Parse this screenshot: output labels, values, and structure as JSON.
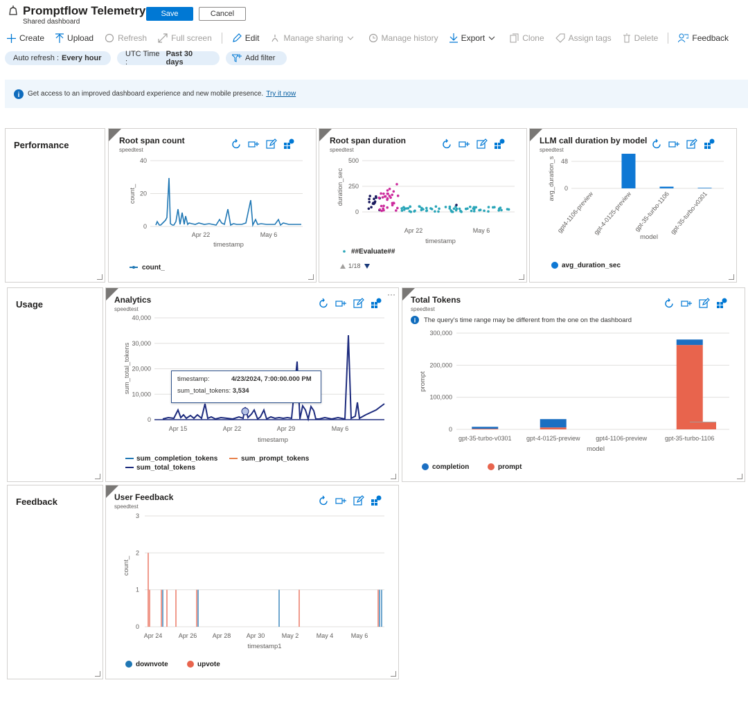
{
  "header": {
    "title": "Promptflow Telemetry",
    "subtitle": "Shared dashboard",
    "save_label": "Save",
    "cancel_label": "Cancel"
  },
  "toolbar": [
    {
      "label": "Create",
      "icon": "plus-icon",
      "enabled": true
    },
    {
      "label": "Upload",
      "icon": "upload-icon",
      "enabled": true
    },
    {
      "label": "Refresh",
      "icon": "refresh-icon",
      "enabled": false
    },
    {
      "label": "Full screen",
      "icon": "fullscreen-icon",
      "enabled": false
    },
    {
      "label": "Edit",
      "icon": "pencil-icon",
      "enabled": true
    },
    {
      "label": "Manage sharing",
      "icon": "share-icon",
      "enabled": false
    },
    {
      "label": "Manage history",
      "icon": "history-icon",
      "enabled": false
    },
    {
      "label": "Export",
      "icon": "download-icon",
      "enabled": true
    },
    {
      "label": "Clone",
      "icon": "copy-icon",
      "enabled": false
    },
    {
      "label": "Assign tags",
      "icon": "tag-icon",
      "enabled": false
    },
    {
      "label": "Delete",
      "icon": "trash-icon",
      "enabled": false
    },
    {
      "label": "Feedback",
      "icon": "feedback-icon",
      "enabled": true
    }
  ],
  "filters": {
    "auto_refresh_key": "Auto refresh :",
    "auto_refresh_val": "Every hour",
    "time_key": "UTC Time :",
    "time_val": "Past 30 days",
    "add_filter": "Add filter"
  },
  "banner": {
    "text": "Get access to an improved dashboard experience and new mobile presence.",
    "link": "Try it now"
  },
  "sections": {
    "performance": "Performance",
    "usage": "Usage",
    "feedback": "Feedback"
  },
  "tiles": {
    "root_span_count": {
      "title": "Root span count",
      "subtitle": "speedtest"
    },
    "root_span_duration": {
      "title": "Root span duration",
      "subtitle": "speedtest"
    },
    "llm_duration": {
      "title": "LLM call duration by model",
      "subtitle": "speedtest"
    },
    "analytics": {
      "title": "Analytics",
      "subtitle": "speedtest"
    },
    "total_tokens": {
      "title": "Total Tokens",
      "subtitle": "speedtest",
      "notice": "The query's time range may be different from the one on the dashboard"
    },
    "user_feedback": {
      "title": "User Feedback",
      "subtitle": "speedtest"
    }
  },
  "tooltip": {
    "timestamp_key": "timestamp:",
    "timestamp_val": "4/23/2024, 7:00:00.000 PM",
    "tokens_key": "sum_total_tokens:",
    "tokens_val": "3,534"
  },
  "chart_data": [
    {
      "id": "root_span_count",
      "type": "line",
      "xlabel": "timestamp",
      "ylabel": "count_",
      "ylim": [
        0,
        40
      ],
      "yticks": [
        0,
        20,
        40
      ],
      "xticks": [
        "Apr 22",
        "May 6"
      ],
      "legend": [
        "count_"
      ],
      "color": "#1f77b4"
    },
    {
      "id": "root_span_duration",
      "type": "scatter",
      "xlabel": "timestamp",
      "ylabel": "duration_sec",
      "ylim": [
        0,
        500
      ],
      "yticks": [
        0,
        250,
        500
      ],
      "xticks": [
        "Apr 22",
        "May 6"
      ],
      "legend": [
        "##Evaluate##"
      ],
      "pager": "1/18"
    },
    {
      "id": "llm_duration",
      "type": "bar",
      "xlabel": "model",
      "ylabel": "avg_duration_s",
      "yticks": [
        0,
        48
      ],
      "categories": [
        "gpt4-1106-preview",
        "gpt-4-0125-preview",
        "gpt-35-turbo-1106",
        "gpt-35-turbo-v0301"
      ],
      "values": [
        0,
        72,
        3,
        1
      ],
      "legend": [
        "avg_duration_sec"
      ],
      "color": "#0f78d4"
    },
    {
      "id": "analytics",
      "type": "line",
      "xlabel": "timestamp",
      "ylabel": "sum_total_tokens",
      "ylim": [
        0,
        40000
      ],
      "yticks": [
        "0",
        "10,000",
        "20,000",
        "30,000",
        "40,000"
      ],
      "xticks": [
        "Apr 15",
        "Apr 22",
        "Apr 29",
        "May 6"
      ],
      "legend": [
        "sum_completion_tokens",
        "sum_prompt_tokens",
        "sum_total_tokens"
      ]
    },
    {
      "id": "total_tokens",
      "type": "bar",
      "stacked": true,
      "xlabel": "model",
      "ylabel": "prompt",
      "ylim": [
        0,
        300000
      ],
      "yticks": [
        "0",
        "100,000",
        "200,000",
        "300,000"
      ],
      "categories": [
        "gpt-35-turbo-v0301",
        "gpt-4-0125-preview",
        "gpt4-1106-preview",
        "gpt-35-turbo-1106"
      ],
      "series": [
        {
          "name": "completion",
          "values": [
            6000,
            26000,
            0,
            17000
          ],
          "color": "#1b6fc2"
        },
        {
          "name": "prompt",
          "values": [
            2000,
            6000,
            0,
            263000
          ],
          "color": "#e8644d"
        }
      ],
      "legend": [
        "completion",
        "prompt"
      ]
    },
    {
      "id": "user_feedback",
      "type": "bar",
      "xlabel": "timestamp1",
      "ylabel": "count_",
      "ylim": [
        0,
        3
      ],
      "yticks": [
        0,
        1,
        2,
        3
      ],
      "xticks": [
        "Apr 24",
        "Apr 26",
        "Apr 28",
        "Apr 30",
        "May 2",
        "May 4",
        "May 6"
      ],
      "legend": [
        "downvote",
        "upvote"
      ],
      "colors": [
        "#1f77b4",
        "#e8644d"
      ]
    }
  ]
}
